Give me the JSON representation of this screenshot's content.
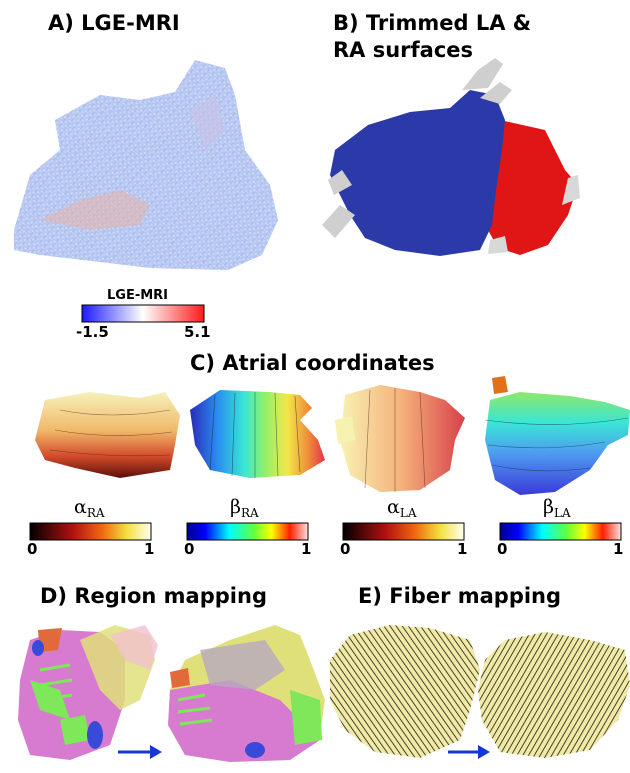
{
  "panels": {
    "a": {
      "title": "A) LGE-MRI"
    },
    "b": {
      "title_line1": "B) Trimmed LA &",
      "title_line2": "RA surfaces"
    },
    "c": {
      "title": "C) Atrial coordinates"
    },
    "d": {
      "title": "D) Region mapping"
    },
    "e": {
      "title": "E) Fiber mapping"
    }
  },
  "lge_colorbar": {
    "title": "LGE-MRI",
    "min": "-1.5",
    "max": "5.1",
    "colors": [
      "#1a1aff",
      "#ffffff",
      "#ff1a1a"
    ]
  },
  "coordinate_bars": [
    {
      "symbol": "α",
      "sub": "RA",
      "min": "0",
      "max": "1",
      "colormap": "black-red-yellow-white"
    },
    {
      "symbol": "β",
      "sub": "RA",
      "min": "0",
      "max": "1",
      "colormap": "jet"
    },
    {
      "symbol": "α",
      "sub": "LA",
      "min": "0",
      "max": "1",
      "colormap": "black-red-yellow-white"
    },
    {
      "symbol": "β",
      "sub": "LA",
      "min": "0",
      "max": "1",
      "colormap": "jet"
    }
  ],
  "colors": {
    "la": "#2b3aa8",
    "ra": "#e01515",
    "arrow": "#1537d6",
    "fiber": "#efe8a0",
    "region_pink": "#d77bd0",
    "region_green": "#7ee85a",
    "region_yellow": "#dfe07a"
  }
}
